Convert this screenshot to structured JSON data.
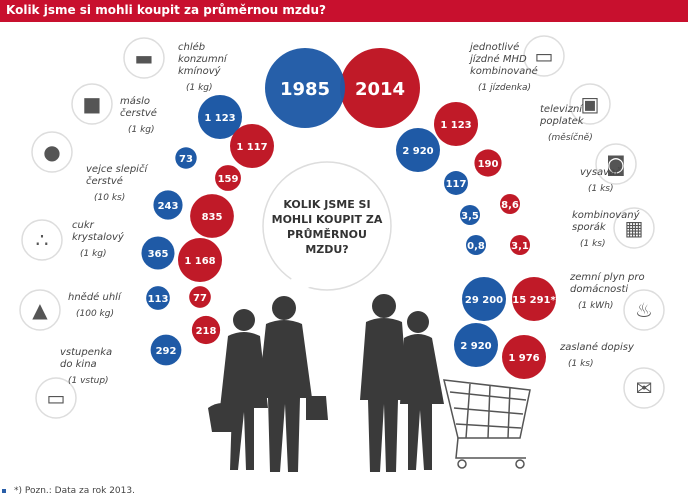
{
  "header": {
    "title": "Kolik jsme si mohli koupit za průměrnou mzdu?"
  },
  "years": {
    "left": "1985",
    "right": "2014"
  },
  "question": [
    "KOLIK JSME SI",
    "MOHLI KOUPIT ZA",
    "PRŮMĚRNOU",
    "MZDU?"
  ],
  "colors": {
    "blue": "#1f5aa6",
    "red": "#c01a28",
    "header": "#c8102e"
  },
  "left_items": [
    {
      "icon": "bread-icon",
      "label": [
        "chléb",
        "konzumní",
        "kmínový"
      ],
      "unit": "(1 kg)",
      "v1985": "1 123",
      "v2014": "1 117"
    },
    {
      "icon": "butter-icon",
      "label": [
        "máslo",
        "čerstvé"
      ],
      "unit": "(1 kg)",
      "v1985": "73",
      "v2014": "159"
    },
    {
      "icon": "eggs-icon",
      "label": [
        "vejce slepičí",
        "čerstvé"
      ],
      "unit": "(10 ks)",
      "v1985": "243",
      "v2014": "835"
    },
    {
      "icon": "sugar-icon",
      "label": [
        "cukr",
        "krystalový"
      ],
      "unit": "(1 kg)",
      "v1985": "365",
      "v2014": "1 168"
    },
    {
      "icon": "coal-icon",
      "label": [
        "hnědé uhlí"
      ],
      "unit": "(100 kg)",
      "v1985": "113",
      "v2014": "77"
    },
    {
      "icon": "ticket-icon",
      "label": [
        "vstupenka",
        "do kina"
      ],
      "unit": "(1 vstup)",
      "v1985": "292",
      "v2014": "218"
    }
  ],
  "right_items": [
    {
      "icon": "transit-ticket-icon",
      "label": [
        "jednotlivé",
        "jízdné MHD",
        "kombinované"
      ],
      "unit": "(1 jízdenka)",
      "v1985": "2 920",
      "v2014": "1 123"
    },
    {
      "icon": "tv-icon",
      "label": [
        "televizní",
        "poplatek"
      ],
      "unit": "(měsíčně)",
      "v1985": "117",
      "v2014": "190"
    },
    {
      "icon": "vacuum-icon",
      "label": [
        "vysavač"
      ],
      "unit": "(1 ks)",
      "v1985": "3,5",
      "v2014": "8,6"
    },
    {
      "icon": "stove-icon",
      "label": [
        "kombinovaný",
        "sporák"
      ],
      "unit": "(1 ks)",
      "v1985": "0,8",
      "v2014": "3,1"
    },
    {
      "icon": "flame-icon",
      "label": [
        "zemní plyn pro",
        "domácnosti"
      ],
      "unit": "(1 kWh)",
      "v1985": "29 200",
      "v2014": "15 291*"
    },
    {
      "icon": "letter-icon",
      "label": [
        "zaslané dopisy"
      ],
      "unit": "(1 ks)",
      "v1985": "2 920",
      "v2014": "1 976"
    }
  ],
  "footer": "*) Pozn.: Data za rok 2013."
}
